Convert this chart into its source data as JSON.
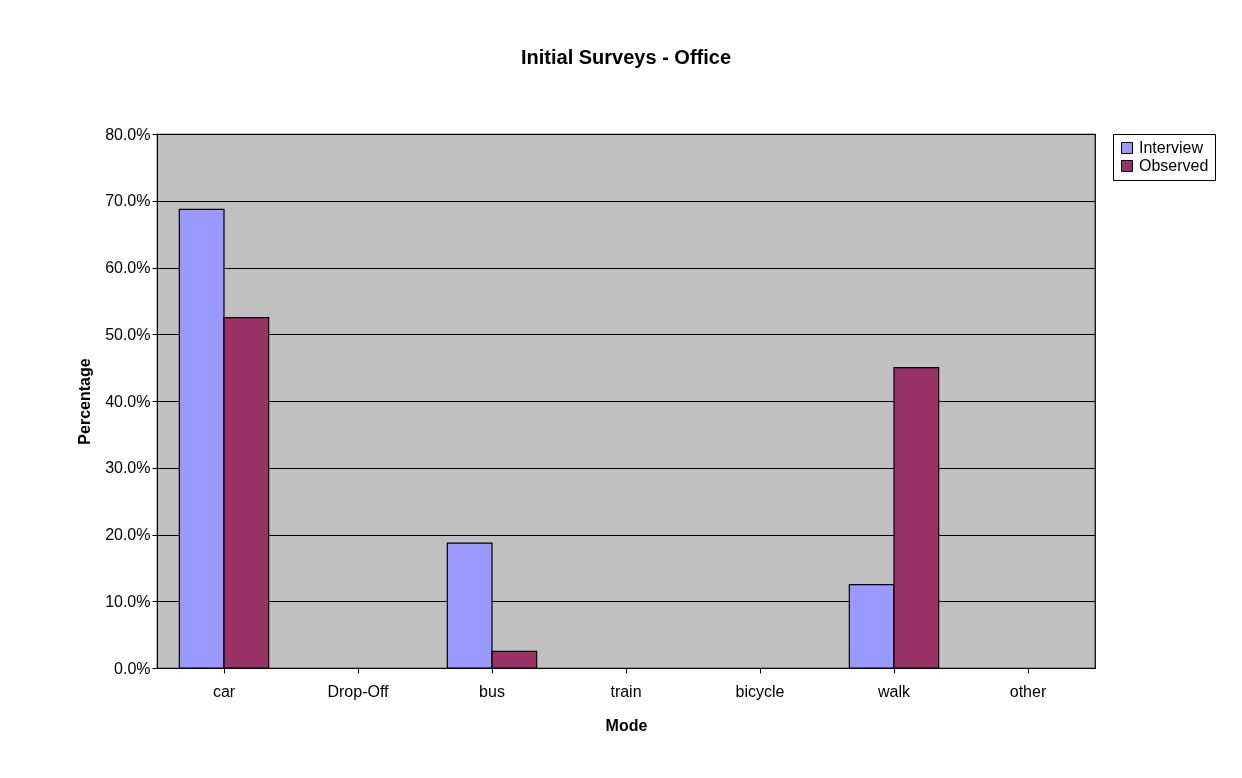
{
  "chart_data": {
    "type": "bar",
    "title": "Initial Surveys - Office",
    "xlabel": "Mode",
    "ylabel": "Percentage",
    "categories": [
      "car",
      "Drop-Off",
      "bus",
      "train",
      "bicycle",
      "walk",
      "other"
    ],
    "series": [
      {
        "name": "Interview",
        "color": "#9999ff",
        "values": [
          68.7,
          null,
          18.7,
          null,
          null,
          12.5,
          null
        ]
      },
      {
        "name": "Observed",
        "color": "#993366",
        "values": [
          52.5,
          null,
          2.5,
          null,
          null,
          45.0,
          null
        ]
      }
    ],
    "ylim": [
      0,
      80
    ],
    "yticks": [
      {
        "value": 0,
        "label": "0.0%"
      },
      {
        "value": 10,
        "label": "10.0%"
      },
      {
        "value": 20,
        "label": "20.0%"
      },
      {
        "value": 30,
        "label": "30.0%"
      },
      {
        "value": 40,
        "label": "40.0%"
      },
      {
        "value": 50,
        "label": "50.0%"
      },
      {
        "value": 60,
        "label": "60.0%"
      },
      {
        "value": 70,
        "label": "70.0%"
      },
      {
        "value": 80,
        "label": "80.0%"
      }
    ],
    "grid": "y",
    "legend": "right"
  }
}
